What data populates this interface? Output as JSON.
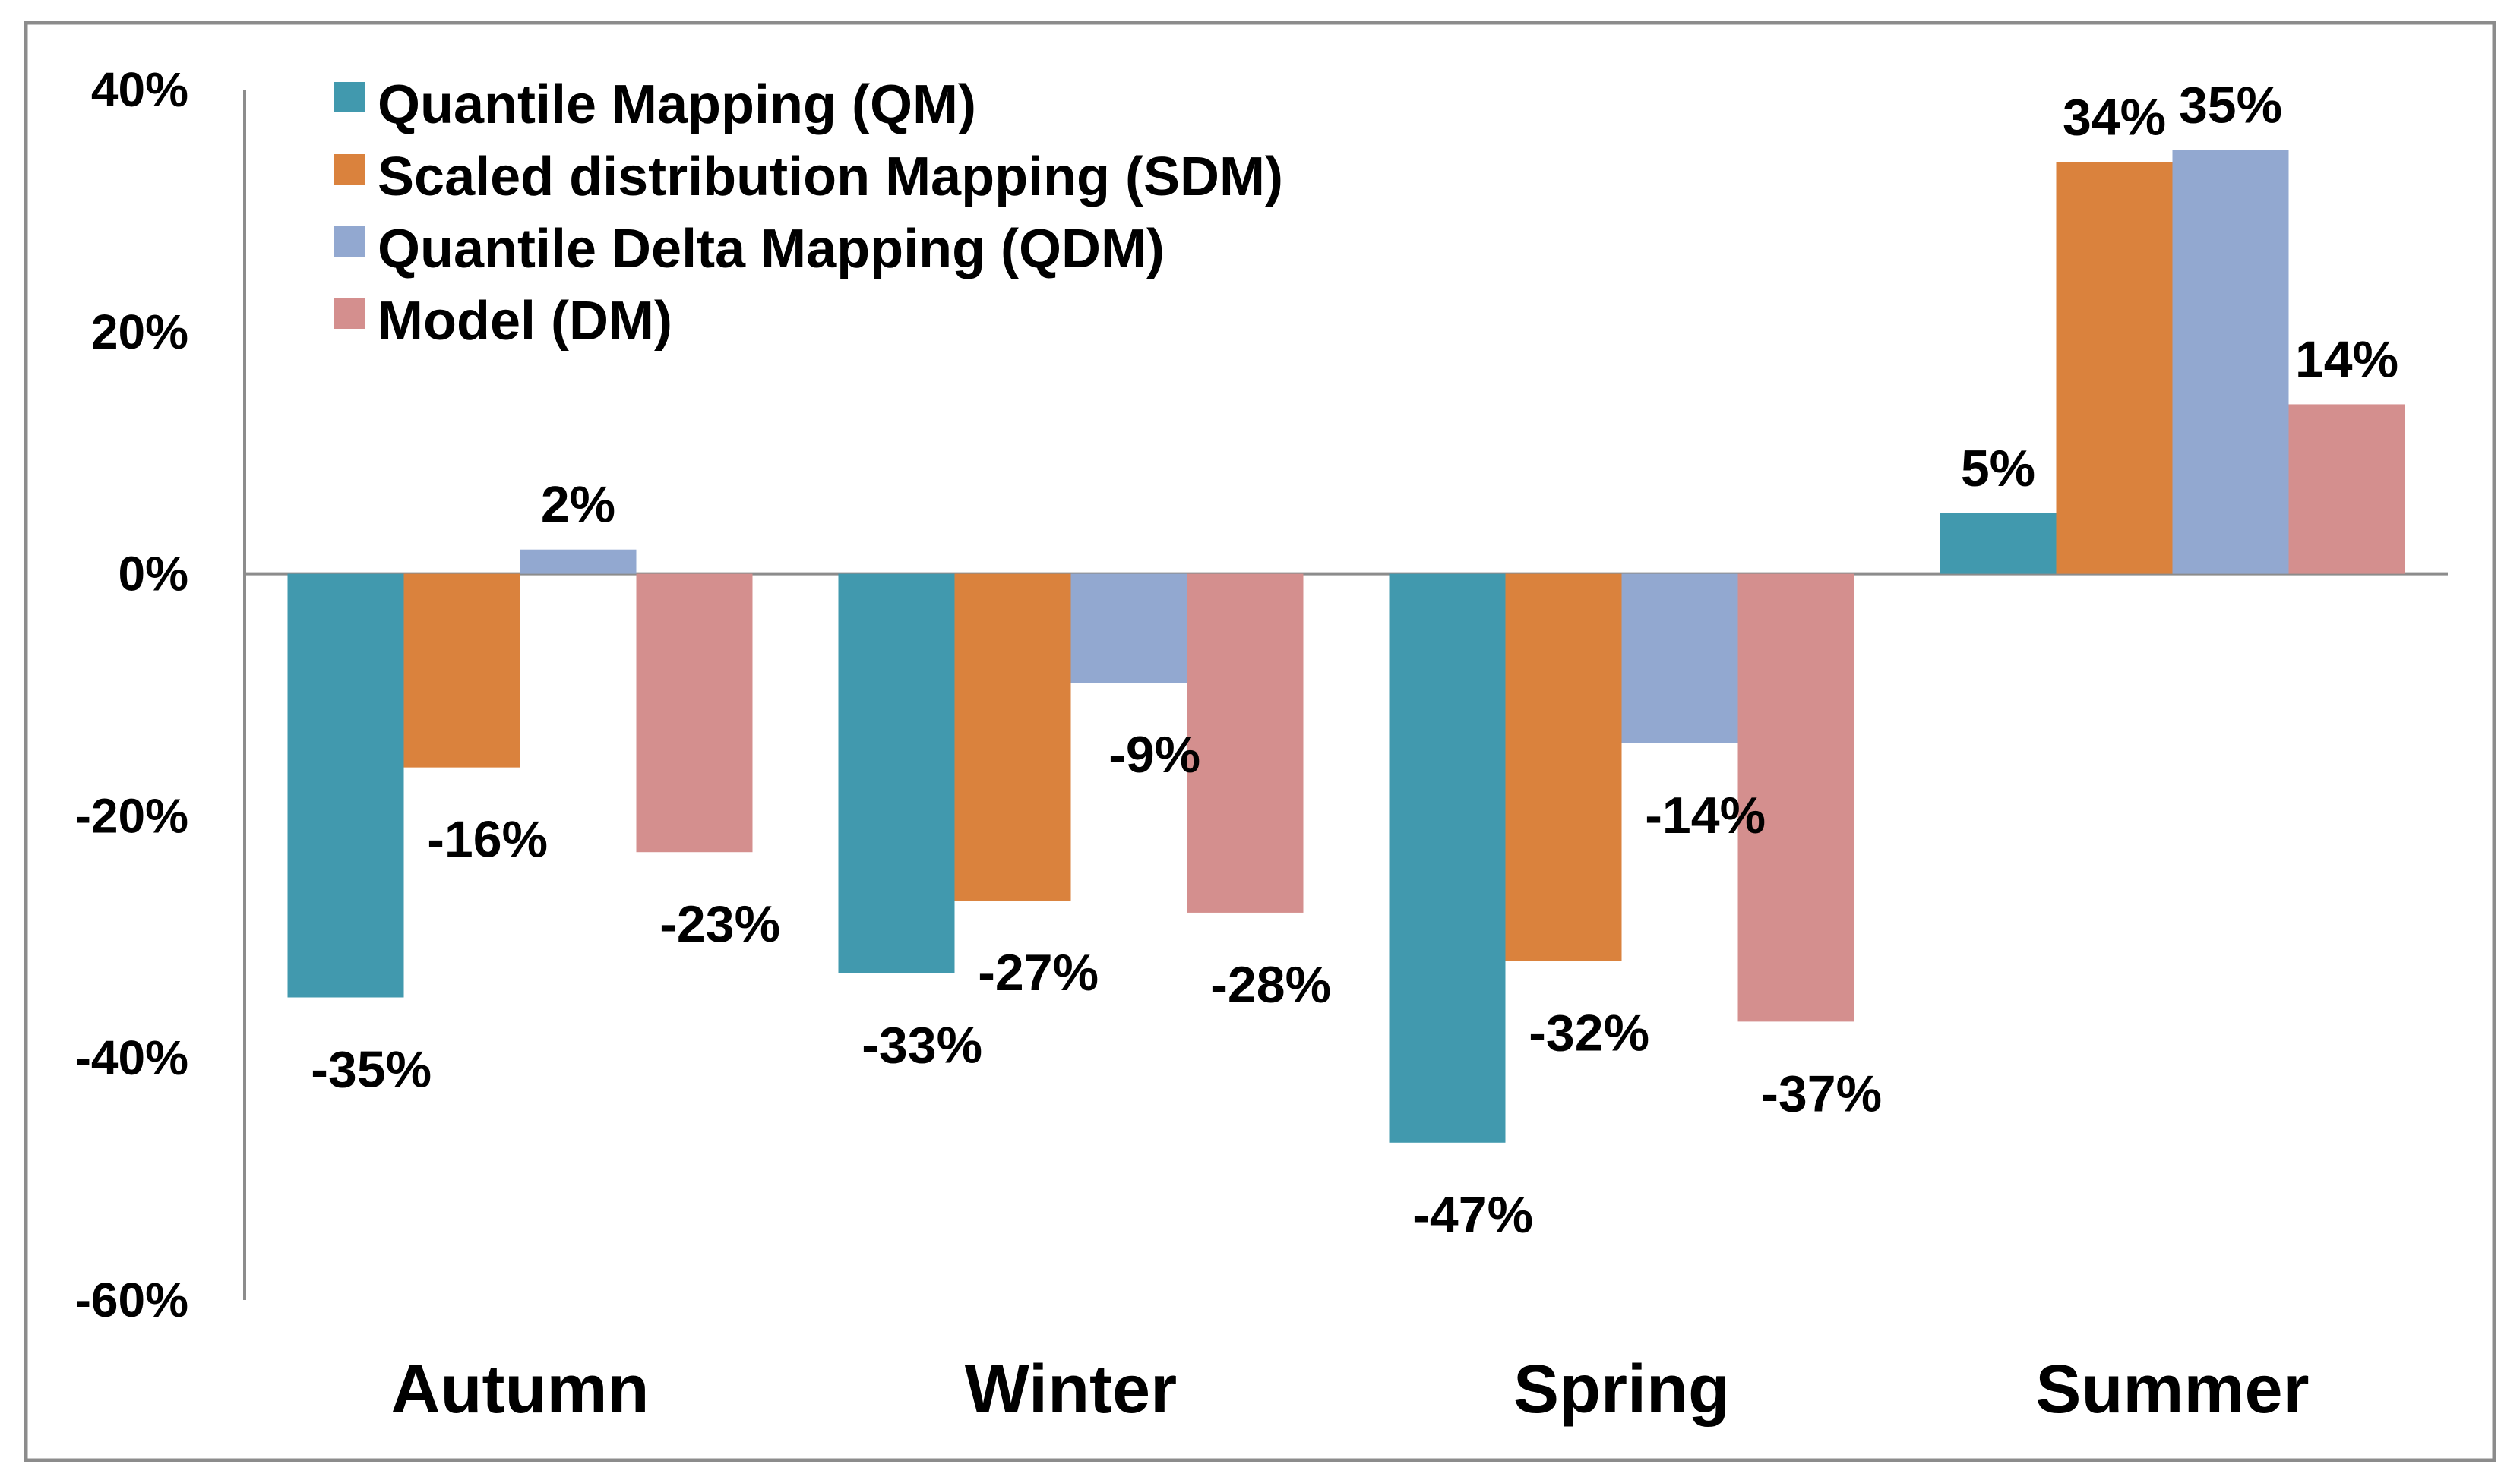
{
  "chart_data": {
    "type": "bar",
    "title": "",
    "xlabel": "",
    "ylabel": "",
    "ylim": [
      -60,
      40
    ],
    "y_ticks": [
      40,
      20,
      0,
      -20,
      -40,
      -60
    ],
    "y_tick_labels": [
      "40%",
      "20%",
      "0%",
      "-20%",
      "-40%",
      "-60%"
    ],
    "grid": false,
    "legend_position": "top-left",
    "categories": [
      "Autumn",
      "Winter",
      "Spring",
      "Summer"
    ],
    "series": [
      {
        "name": "Quantile Mapping (QM)",
        "color": "#4199AE",
        "values": [
          -35,
          -33,
          -47,
          5
        ],
        "labels": [
          "-35%",
          "-33%",
          "-47%",
          "5%"
        ]
      },
      {
        "name": "Scaled distribution Mapping (SDM)",
        "color": "#DA823D",
        "values": [
          -16,
          -27,
          -32,
          34
        ],
        "labels": [
          "-16%",
          "-27%",
          "-32%",
          "34%"
        ]
      },
      {
        "name": "Quantile Delta Mapping (QDM)",
        "color": "#92A8D0",
        "values": [
          2,
          -9,
          -14,
          35
        ],
        "labels": [
          "2%",
          "-9%",
          "-14%",
          "35%"
        ]
      },
      {
        "name": "Model (DM)",
        "color": "#D48F8E",
        "values": [
          -23,
          -28,
          -37,
          14
        ],
        "labels": [
          "-23%",
          "-28%",
          "-37%",
          "14%"
        ]
      }
    ]
  }
}
